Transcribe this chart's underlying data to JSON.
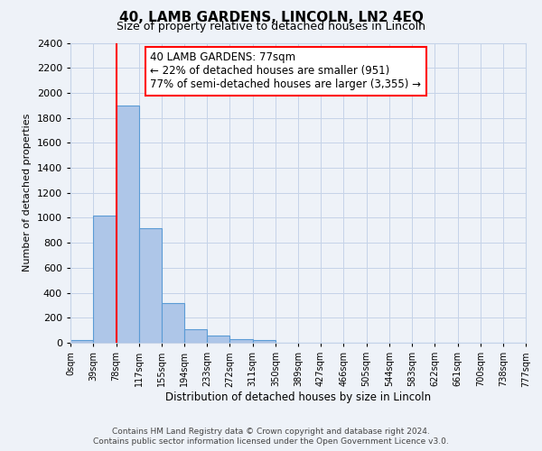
{
  "title": "40, LAMB GARDENS, LINCOLN, LN2 4EQ",
  "subtitle": "Size of property relative to detached houses in Lincoln",
  "bar_values": [
    20,
    1020,
    1900,
    920,
    320,
    110,
    55,
    30,
    20,
    0,
    0,
    0,
    0,
    0,
    0,
    0,
    0,
    0,
    0,
    0
  ],
  "bin_edges": [
    0,
    39,
    78,
    117,
    155,
    194,
    233,
    272,
    311,
    350,
    389,
    427,
    466,
    505,
    544,
    583,
    622,
    661,
    700,
    738,
    777
  ],
  "x_tick_labels": [
    "0sqm",
    "39sqm",
    "78sqm",
    "117sqm",
    "155sqm",
    "194sqm",
    "233sqm",
    "272sqm",
    "311sqm",
    "350sqm",
    "389sqm",
    "427sqm",
    "466sqm",
    "505sqm",
    "544sqm",
    "583sqm",
    "622sqm",
    "661sqm",
    "700sqm",
    "738sqm",
    "777sqm"
  ],
  "ylabel": "Number of detached properties",
  "xlabel": "Distribution of detached houses by size in Lincoln",
  "ylim": [
    0,
    2400
  ],
  "yticks": [
    0,
    200,
    400,
    600,
    800,
    1000,
    1200,
    1400,
    1600,
    1800,
    2000,
    2200,
    2400
  ],
  "bar_color": "#aec6e8",
  "bar_edge_color": "#5b9bd5",
  "red_line_x": 78,
  "annotation_title": "40 LAMB GARDENS: 77sqm",
  "annotation_line1": "← 22% of detached houses are smaller (951)",
  "annotation_line2": "77% of semi-detached houses are larger (3,355) →",
  "footer_line1": "Contains HM Land Registry data © Crown copyright and database right 2024.",
  "footer_line2": "Contains public sector information licensed under the Open Government Licence v3.0.",
  "bg_color": "#eef2f8",
  "plot_bg_color": "#eef2f8",
  "grid_color": "#c5d3e8"
}
